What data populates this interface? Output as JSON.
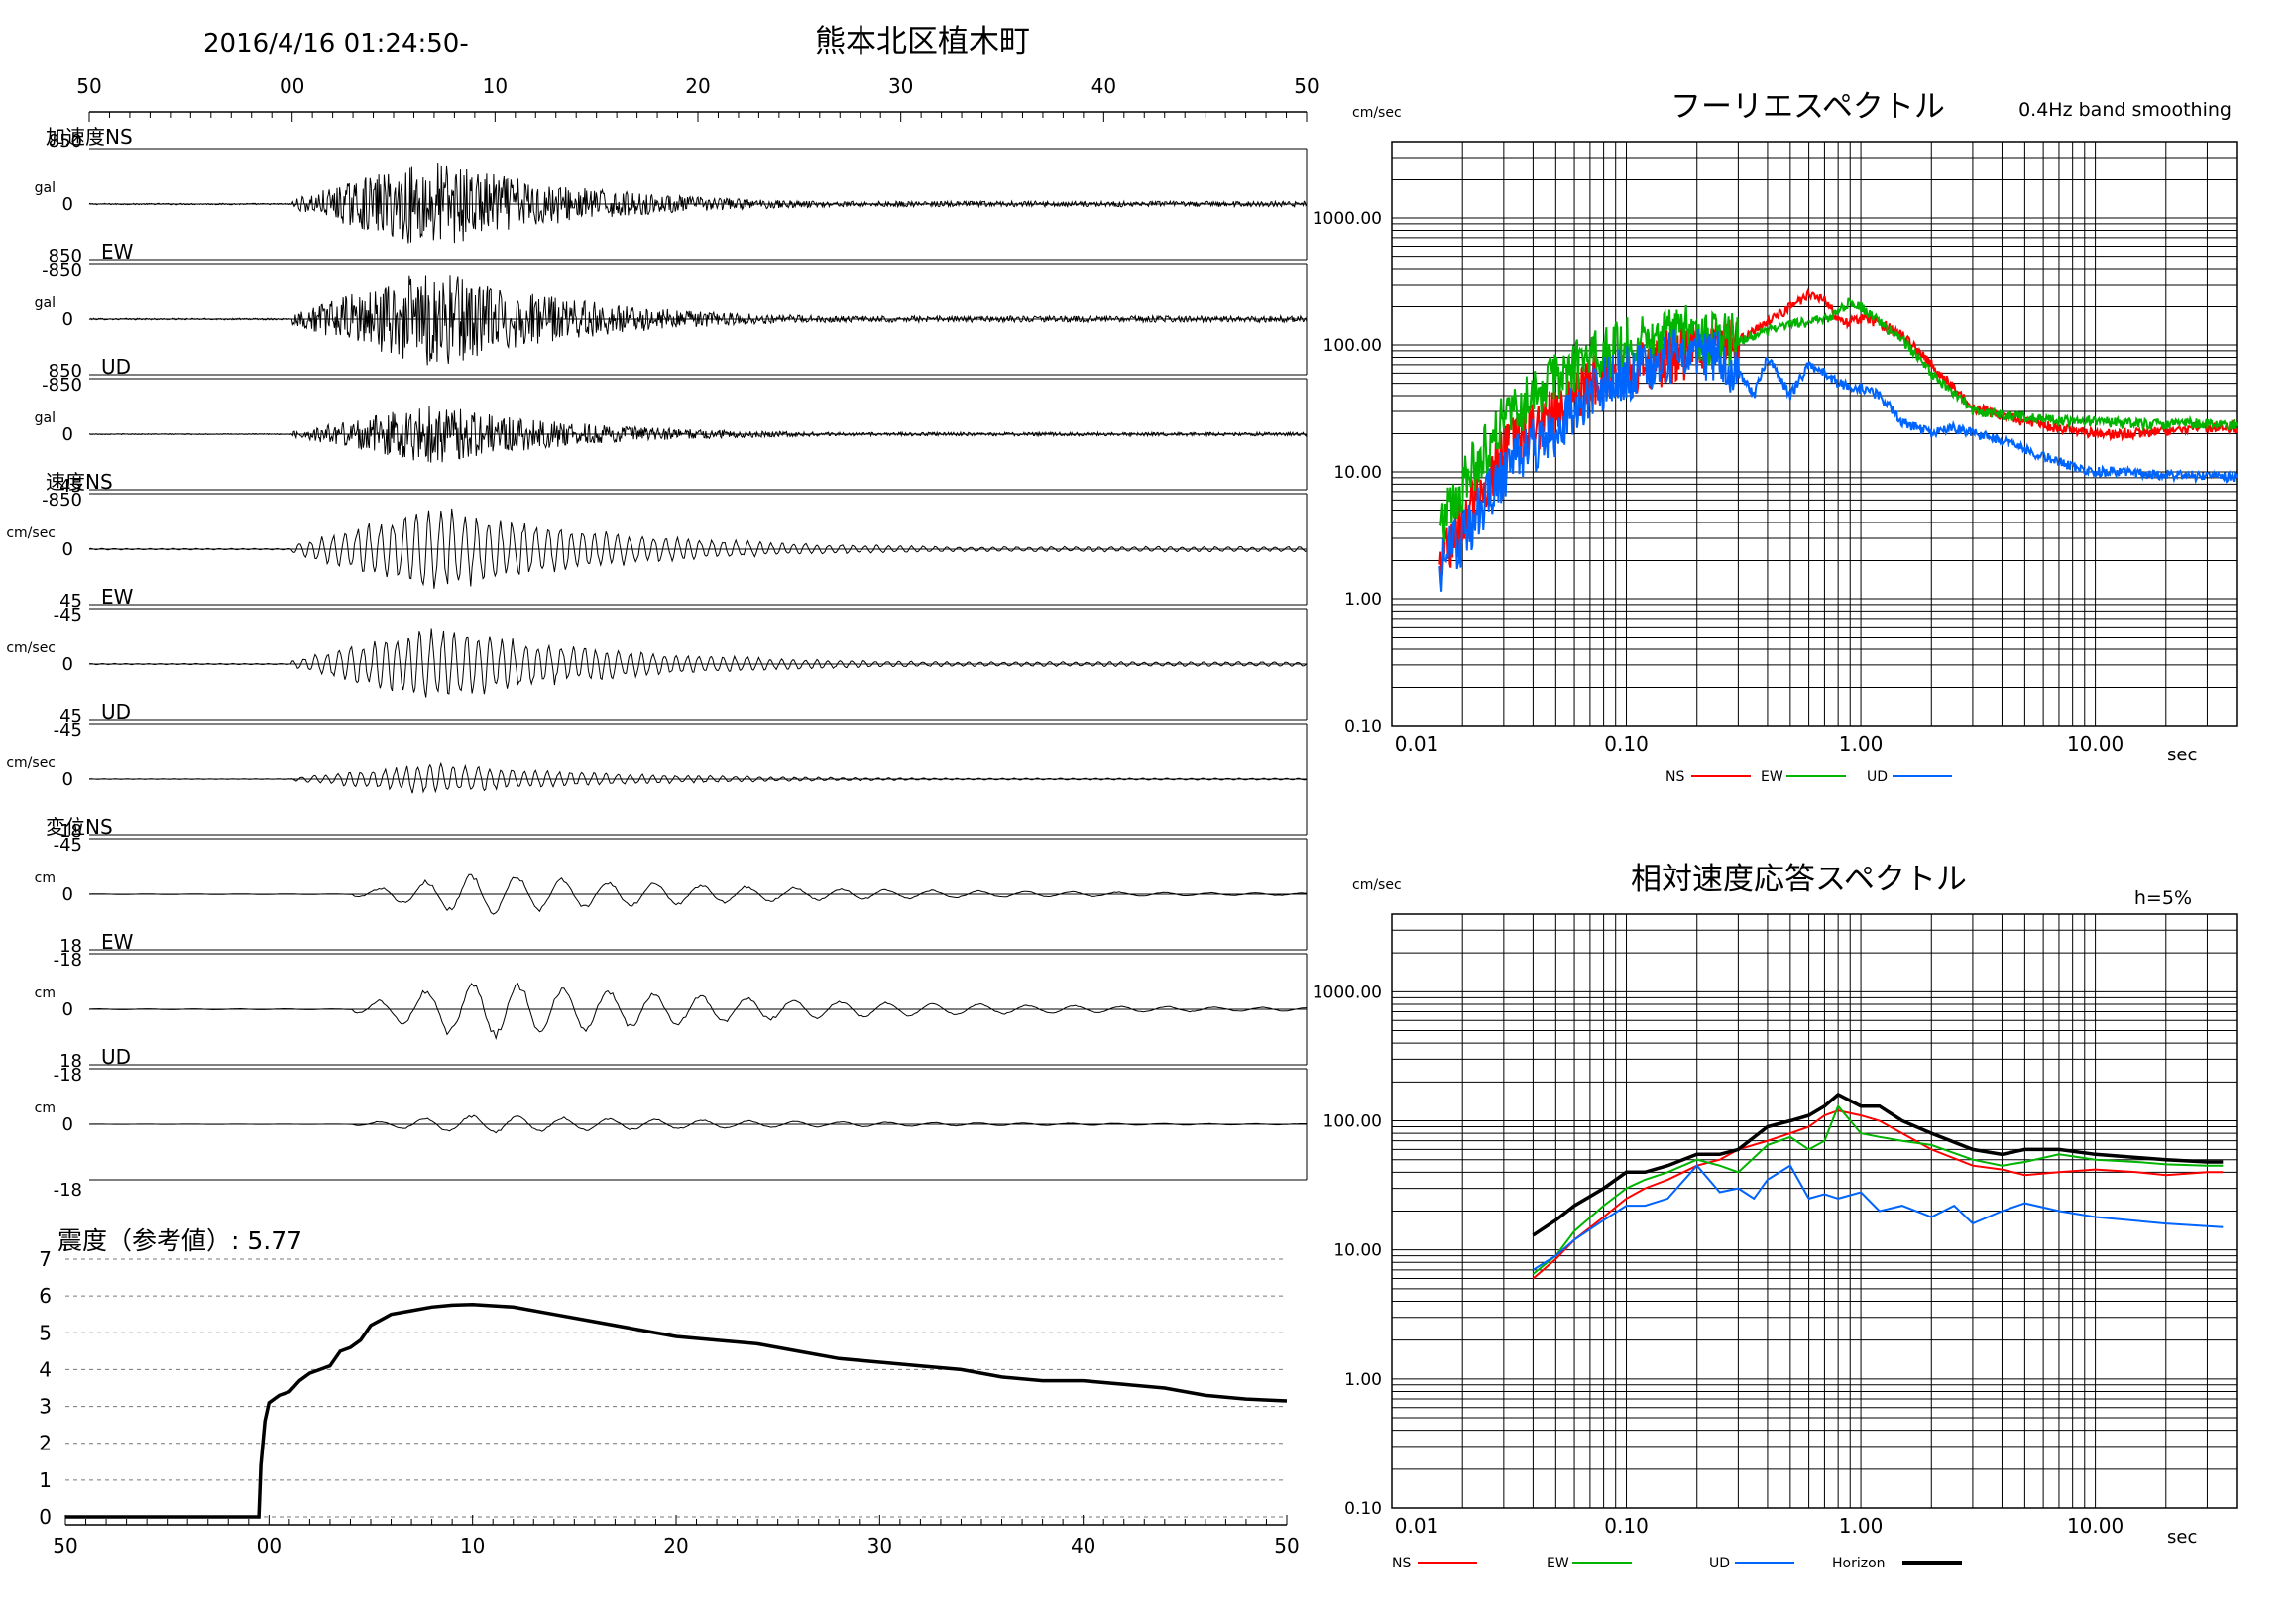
{
  "header": {
    "datetime": "2016/4/16 01:24:50-",
    "station": "熊本北区植木町"
  },
  "time_ticks": [
    "50",
    "00",
    "10",
    "20",
    "30",
    "40",
    "50"
  ],
  "traces": {
    "groups": [
      {
        "title": "加速度",
        "unit": "gal",
        "max_label": "850",
        "min_label": "-850",
        "components": [
          {
            "name": "NS",
            "amp": 0.85
          },
          {
            "name": "EW",
            "amp": 0.95
          },
          {
            "name": "UD",
            "amp": 0.55
          }
        ]
      },
      {
        "title": "速度",
        "unit": "cm/sec",
        "max_label": "45",
        "min_label": "-45",
        "components": [
          {
            "name": "NS",
            "amp": 0.85
          },
          {
            "name": "EW",
            "amp": 0.75
          },
          {
            "name": "UD",
            "amp": 0.3
          }
        ]
      },
      {
        "title": "変位",
        "unit": "cm",
        "max_label": "18",
        "min_label": "-18",
        "components": [
          {
            "name": "NS",
            "amp": 0.4
          },
          {
            "name": "EW",
            "amp": 0.6
          },
          {
            "name": "UD",
            "amp": 0.18
          }
        ]
      }
    ],
    "zero_label": "0"
  },
  "intensity": {
    "label": "震度（参考値）: 5.77",
    "y_ticks": [
      "0",
      "1",
      "2",
      "3",
      "4",
      "5",
      "6",
      "7"
    ]
  },
  "chart_data": [
    {
      "type": "line",
      "title": "震度（参考値）: 5.77",
      "x_ticks": [
        "50",
        "00",
        "10",
        "20",
        "30",
        "40",
        "50"
      ],
      "x_range_seconds": [
        0,
        60
      ],
      "ylim": [
        0,
        7
      ],
      "series": [
        {
          "x": [
            0,
            9.5,
            9.6,
            9.8,
            10,
            10.5,
            11,
            11.5,
            12,
            12.5,
            13,
            13.5,
            14,
            14.5,
            15,
            16,
            17,
            18,
            19,
            20,
            22,
            24,
            26,
            28,
            30,
            32,
            34,
            36,
            38,
            40,
            42,
            44,
            46,
            48,
            50,
            52,
            54,
            56,
            58,
            60
          ],
          "y": [
            0,
            0,
            1.4,
            2.6,
            3.1,
            3.3,
            3.4,
            3.7,
            3.9,
            4.0,
            4.1,
            4.5,
            4.6,
            4.8,
            5.2,
            5.5,
            5.6,
            5.7,
            5.75,
            5.77,
            5.7,
            5.5,
            5.3,
            5.1,
            4.9,
            4.8,
            4.7,
            4.5,
            4.3,
            4.2,
            4.1,
            4.0,
            3.8,
            3.7,
            3.7,
            3.6,
            3.5,
            3.3,
            3.2,
            3.15
          ]
        }
      ]
    },
    {
      "type": "line",
      "title": "フーリエスペクトル",
      "subtitle": "0.4Hz band smoothing",
      "yunit": "cm/sec",
      "xlabel": "sec",
      "x_scale": "log",
      "y_scale": "log",
      "xlim": [
        0.01,
        40
      ],
      "ylim": [
        0.1,
        4000
      ],
      "x_ticks": [
        0.01,
        0.1,
        1,
        10
      ],
      "x_tick_labels": [
        "0.01",
        "0.10",
        "1.00",
        "10.00"
      ],
      "y_ticks": [
        0.1,
        1,
        10,
        100,
        1000
      ],
      "y_tick_labels": [
        "0.10",
        "1.00",
        "10.00",
        "100.00",
        "1000.00"
      ],
      "series": [
        {
          "name": "NS",
          "color": "#ff0000",
          "x": [
            0.016,
            0.02,
            0.025,
            0.03,
            0.04,
            0.05,
            0.06,
            0.07,
            0.08,
            0.1,
            0.12,
            0.15,
            0.2,
            0.25,
            0.3,
            0.4,
            0.5,
            0.6,
            0.7,
            0.8,
            0.9,
            1.0,
            1.2,
            1.5,
            2,
            3,
            5,
            8,
            10,
            15,
            20,
            30,
            40
          ],
          "y": [
            2,
            4,
            8,
            14,
            22,
            30,
            40,
            48,
            55,
            62,
            70,
            80,
            90,
            100,
            110,
            150,
            200,
            250,
            230,
            160,
            150,
            160,
            150,
            120,
            70,
            32,
            25,
            21,
            20,
            20,
            21,
            23,
            22
          ]
        },
        {
          "name": "EW",
          "color": "#00b400",
          "x": [
            0.016,
            0.02,
            0.025,
            0.03,
            0.04,
            0.05,
            0.06,
            0.07,
            0.08,
            0.1,
            0.12,
            0.15,
            0.2,
            0.25,
            0.3,
            0.4,
            0.5,
            0.6,
            0.7,
            0.8,
            0.9,
            1.0,
            1.2,
            1.5,
            2,
            3,
            5,
            8,
            10,
            15,
            20,
            30,
            40
          ],
          "y": [
            4,
            8,
            15,
            25,
            40,
            55,
            65,
            75,
            85,
            100,
            120,
            130,
            120,
            110,
            110,
            130,
            150,
            150,
            160,
            180,
            220,
            200,
            150,
            110,
            60,
            30,
            27,
            25,
            25,
            24,
            24,
            24,
            23
          ]
        },
        {
          "name": "UD",
          "color": "#0064ff",
          "x": [
            0.016,
            0.02,
            0.025,
            0.03,
            0.04,
            0.05,
            0.06,
            0.07,
            0.08,
            0.1,
            0.12,
            0.15,
            0.2,
            0.25,
            0.3,
            0.35,
            0.4,
            0.5,
            0.6,
            0.7,
            0.8,
            1.0,
            1.2,
            1.5,
            2,
            2.5,
            3,
            4,
            5,
            8,
            10,
            20,
            40
          ],
          "y": [
            1.8,
            3,
            6,
            10,
            16,
            22,
            30,
            40,
            50,
            60,
            70,
            80,
            90,
            80,
            60,
            40,
            80,
            40,
            70,
            60,
            50,
            45,
            40,
            25,
            20,
            22,
            20,
            18,
            15,
            11,
            10,
            9.5,
            9
          ]
        }
      ]
    },
    {
      "type": "line",
      "title": "相対速度応答スペクトル",
      "annotation": "h=5%",
      "yunit": "cm/sec",
      "xlabel": "sec",
      "x_scale": "log",
      "y_scale": "log",
      "xlim": [
        0.01,
        40
      ],
      "ylim": [
        0.1,
        4000
      ],
      "x_ticks": [
        0.01,
        0.1,
        1,
        10
      ],
      "x_tick_labels": [
        "0.01",
        "0.10",
        "1.00",
        "10.00"
      ],
      "y_ticks": [
        0.1,
        1,
        10,
        100,
        1000
      ],
      "y_tick_labels": [
        "0.10",
        "1.00",
        "10.00",
        "100.00",
        "1000.00"
      ],
      "series": [
        {
          "name": "NS",
          "color": "#ff0000",
          "x": [
            0.04,
            0.05,
            0.06,
            0.08,
            0.1,
            0.12,
            0.15,
            0.2,
            0.25,
            0.3,
            0.4,
            0.5,
            0.6,
            0.7,
            0.8,
            1.0,
            1.2,
            1.5,
            2,
            3,
            4,
            5,
            7,
            10,
            15,
            20,
            30,
            35
          ],
          "y": [
            6,
            8.5,
            12,
            18,
            25,
            30,
            35,
            45,
            50,
            60,
            70,
            80,
            90,
            110,
            120,
            110,
            100,
            80,
            60,
            45,
            42,
            38,
            40,
            42,
            40,
            38,
            40,
            40
          ]
        },
        {
          "name": "EW",
          "color": "#00b400",
          "x": [
            0.04,
            0.05,
            0.06,
            0.08,
            0.1,
            0.12,
            0.15,
            0.2,
            0.25,
            0.3,
            0.4,
            0.5,
            0.6,
            0.7,
            0.8,
            1.0,
            1.2,
            1.5,
            2,
            3,
            4,
            5,
            7,
            10,
            15,
            20,
            30,
            35
          ],
          "y": [
            6.5,
            9,
            14,
            22,
            30,
            35,
            40,
            50,
            45,
            40,
            65,
            75,
            60,
            70,
            130,
            80,
            75,
            70,
            65,
            50,
            45,
            48,
            55,
            50,
            48,
            46,
            45,
            45
          ]
        },
        {
          "name": "UD",
          "color": "#0064ff",
          "x": [
            0.04,
            0.05,
            0.06,
            0.08,
            0.1,
            0.12,
            0.15,
            0.2,
            0.25,
            0.3,
            0.35,
            0.4,
            0.5,
            0.6,
            0.7,
            0.8,
            1.0,
            1.2,
            1.5,
            2,
            2.5,
            3,
            4,
            5,
            7,
            10,
            20,
            35
          ],
          "y": [
            7,
            9,
            12,
            17,
            22,
            22,
            25,
            45,
            28,
            30,
            25,
            35,
            45,
            25,
            27,
            25,
            28,
            20,
            22,
            18,
            22,
            16,
            20,
            23,
            20,
            18,
            16,
            15
          ]
        },
        {
          "name": "Horizon",
          "color": "#000000",
          "x": [
            0.04,
            0.05,
            0.06,
            0.08,
            0.1,
            0.12,
            0.15,
            0.2,
            0.25,
            0.3,
            0.4,
            0.5,
            0.6,
            0.7,
            0.8,
            1.0,
            1.2,
            1.5,
            2,
            3,
            4,
            5,
            7,
            10,
            15,
            20,
            30,
            35
          ],
          "y": [
            13,
            17,
            22,
            30,
            40,
            40,
            45,
            55,
            55,
            60,
            90,
            100,
            110,
            130,
            160,
            130,
            130,
            100,
            80,
            60,
            55,
            60,
            60,
            55,
            52,
            50,
            48,
            48
          ]
        }
      ]
    }
  ]
}
